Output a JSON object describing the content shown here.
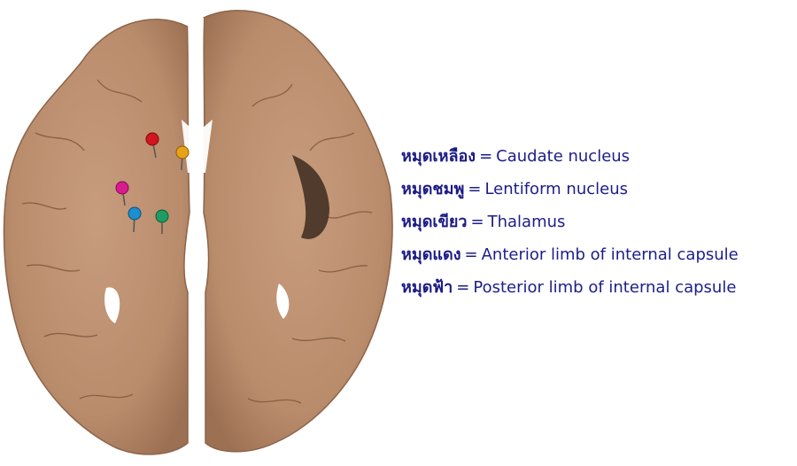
{
  "colors": {
    "background": "#ffffff",
    "tissue": "#b98c6c",
    "tissue_dark": "#8d6448",
    "legend_text": "#1d1d8a"
  },
  "pins": [
    {
      "name": "yellow-pin",
      "color": "#e8a21a"
    },
    {
      "name": "pink-pin",
      "color": "#d81b8f"
    },
    {
      "name": "green-pin",
      "color": "#1f9c62"
    },
    {
      "name": "red-pin",
      "color": "#d3151f"
    },
    {
      "name": "blue-pin",
      "color": "#1b8fcf"
    }
  ],
  "legend": [
    {
      "pin": "หมุดเหลือง",
      "sep": "=",
      "structure": "Caudate nucleus"
    },
    {
      "pin": "หมุดชมพู",
      "sep": "=",
      "structure": "Lentiform nucleus"
    },
    {
      "pin": "หมุดเขียว",
      "sep": "=",
      "structure": "Thalamus"
    },
    {
      "pin": "หมุดแดง",
      "sep": "=",
      "structure": "Anterior limb of internal capsule"
    },
    {
      "pin": "หมุดฟ้า",
      "sep": "=",
      "structure": "Posterior limb of internal capsule"
    }
  ]
}
